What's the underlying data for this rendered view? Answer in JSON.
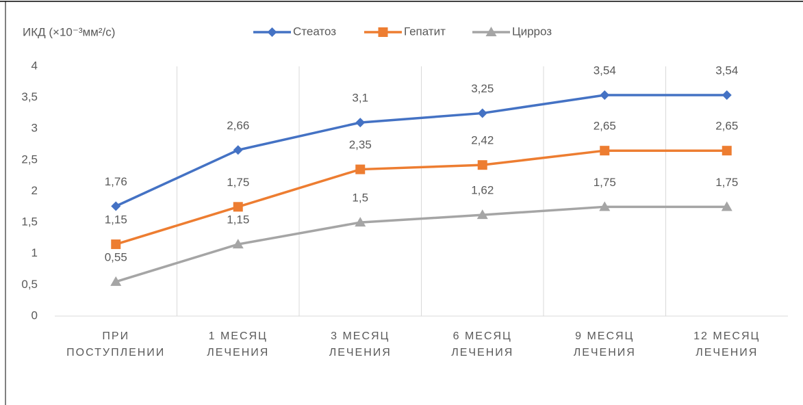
{
  "chart_data": {
    "type": "line",
    "y_label": "ИКД (×10⁻³мм²/с)",
    "categories": [
      "ПРИ\nПОСТУПЛЕНИИ",
      "1 МЕСЯЦ\nЛЕЧЕНИЯ",
      "3 МЕСЯЦ\nЛЕЧЕНИЯ",
      "6 МЕСЯЦ\nЛЕЧЕНИЯ",
      "9 МЕСЯЦ\nЛЕЧЕНИЯ",
      "12 МЕСЯЦ\nЛЕЧЕНИЯ"
    ],
    "series": [
      {
        "name": "Стеатоз",
        "color": "#4472c4",
        "marker": "diamond",
        "values": [
          1.76,
          2.66,
          3.1,
          3.25,
          3.54,
          3.54
        ],
        "value_labels": [
          "1,76",
          "2,66",
          "3,1",
          "3,25",
          "3,54",
          "3,54"
        ]
      },
      {
        "name": "Гепатит",
        "color": "#ed7d31",
        "marker": "square",
        "values": [
          1.15,
          1.75,
          2.35,
          2.42,
          2.65,
          2.65
        ],
        "value_labels": [
          "1,15",
          "1,75",
          "2,35",
          "2,42",
          "2,65",
          "2,65"
        ]
      },
      {
        "name": "Цирроз",
        "color": "#a5a5a5",
        "marker": "triangle",
        "values": [
          0.55,
          1.15,
          1.5,
          1.62,
          1.75,
          1.75
        ],
        "value_labels": [
          "0,55",
          "1,15",
          "1,5",
          "1,62",
          "1,75",
          "1,75"
        ]
      }
    ],
    "ylim": [
      0,
      4
    ],
    "yticks": [
      0,
      {
        "value": 0.5,
        "label": "0,5"
      },
      1,
      {
        "value": 1.5,
        "label": "1,5"
      },
      2,
      {
        "value": 2.5,
        "label": "2,5"
      },
      3,
      {
        "value": 3.5,
        "label": "3,5"
      },
      4
    ],
    "grid": "vertical",
    "legend": "top"
  }
}
